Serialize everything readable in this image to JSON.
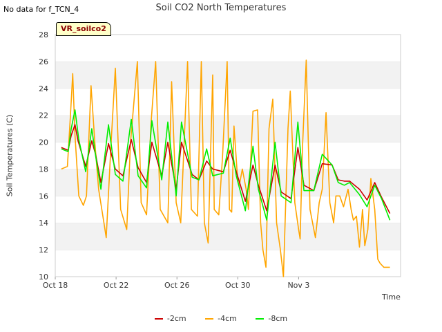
{
  "no_data_note": "No data for f_TCN_4",
  "badge_label": "VR_soilco2",
  "chart_data": {
    "type": "line",
    "title": "Soil CO2 North Temperatures",
    "xlabel": "Time",
    "ylabel": "Soil Temperatures (C)",
    "ylim": [
      10,
      28
    ],
    "yticks": [
      10,
      12,
      14,
      16,
      18,
      20,
      22,
      24,
      26,
      28
    ],
    "xlim": [
      0,
      22.7
    ],
    "xticks": [
      {
        "value": 0,
        "label": "Oct 18"
      },
      {
        "value": 4,
        "label": "Oct 22"
      },
      {
        "value": 8,
        "label": "Oct 26"
      },
      {
        "value": 12,
        "label": "Oct 30"
      },
      {
        "value": 16,
        "label": "Nov 3"
      }
    ],
    "x_unit": "days since Oct 18",
    "grid": "horizontal alternating bands",
    "legend_position": "bottom",
    "series": [
      {
        "name": "-2cm",
        "color": "#cc0000",
        "x": [
          0.4,
          0.85,
          1.05,
          1.3,
          1.5,
          2.0,
          2.4,
          2.65,
          3.0,
          3.5,
          3.95,
          4.45,
          5.0,
          5.45,
          6.0,
          6.35,
          7.0,
          7.4,
          7.95,
          8.3,
          9.0,
          9.45,
          9.95,
          10.35,
          11.05,
          11.5,
          11.9,
          12.5,
          13.0,
          13.35,
          13.9,
          14.45,
          14.85,
          15.5,
          15.95,
          16.35,
          17.0,
          17.55,
          18.2,
          18.6,
          19.0,
          19.35,
          20.0,
          20.5,
          21.0,
          21.45,
          22.0
        ],
        "values": [
          19.6,
          19.4,
          20.5,
          21.3,
          20.1,
          18.2,
          20.1,
          19.1,
          17.0,
          19.9,
          18.0,
          17.5,
          20.2,
          18.1,
          17.0,
          20.0,
          17.5,
          20.0,
          16.5,
          20.0,
          17.6,
          17.2,
          18.6,
          18.0,
          17.8,
          19.4,
          17.8,
          15.6,
          18.3,
          16.8,
          14.9,
          18.3,
          16.3,
          15.8,
          19.6,
          16.8,
          16.4,
          18.4,
          18.3,
          17.2,
          17.1,
          17.1,
          16.5,
          15.7,
          17.0,
          15.9,
          14.7
        ]
      },
      {
        "name": "-4cm",
        "color": "#ffa500",
        "x": [
          0.4,
          0.8,
          1.0,
          1.15,
          1.3,
          1.55,
          1.85,
          2.05,
          2.35,
          2.6,
          2.85,
          3.2,
          3.35,
          3.65,
          3.95,
          4.3,
          4.7,
          4.95,
          5.4,
          5.65,
          6.0,
          6.3,
          6.6,
          6.9,
          7.4,
          7.65,
          7.95,
          8.25,
          8.7,
          8.95,
          9.35,
          9.6,
          9.8,
          10.05,
          10.35,
          10.45,
          10.75,
          11.0,
          11.3,
          11.45,
          11.6,
          11.75,
          12.0,
          12.1,
          12.3,
          12.55,
          12.7,
          13.0,
          13.3,
          13.5,
          13.65,
          13.85,
          14.05,
          14.3,
          14.55,
          14.8,
          15.0,
          15.3,
          15.45,
          15.75,
          16.0,
          16.1,
          16.25,
          16.5,
          16.75,
          17.1,
          17.35,
          17.55,
          17.8,
          18.05,
          18.3,
          18.45,
          18.7,
          18.95,
          19.25,
          19.45,
          19.6,
          19.8,
          20.0,
          20.2,
          20.35,
          20.55,
          20.75,
          21.0,
          21.2,
          21.35,
          21.6,
          22.0
        ],
        "values": [
          18.0,
          18.2,
          22.0,
          25.1,
          20.5,
          16.0,
          15.3,
          16.0,
          24.2,
          20.0,
          16.5,
          14.0,
          12.9,
          19.5,
          25.5,
          15.0,
          13.5,
          20.0,
          26.0,
          15.5,
          14.6,
          21.5,
          26.0,
          15.0,
          14.0,
          24.5,
          15.5,
          14.0,
          26.0,
          15.0,
          14.5,
          26.0,
          14.0,
          12.5,
          25.0,
          15.0,
          14.6,
          19.0,
          26.0,
          15.0,
          14.8,
          21.2,
          17.1,
          16.8,
          18.0,
          16.5,
          15.0,
          22.3,
          22.4,
          14.0,
          12.0,
          10.7,
          21.0,
          23.2,
          14.0,
          12.0,
          10.0,
          21.0,
          23.8,
          15.5,
          13.5,
          12.8,
          19.5,
          26.1,
          15.0,
          12.9,
          15.5,
          16.5,
          22.2,
          15.5,
          14.0,
          16.0,
          16.0,
          15.2,
          16.5,
          15.0,
          14.2,
          14.5,
          12.2,
          15.0,
          12.3,
          13.5,
          17.3,
          15.0,
          11.3,
          11.0,
          10.7,
          10.7
        ]
      },
      {
        "name": "-8cm",
        "color": "#00ee00",
        "x": [
          0.4,
          0.85,
          1.05,
          1.3,
          1.55,
          2.0,
          2.4,
          2.65,
          3.0,
          3.5,
          3.95,
          4.45,
          5.0,
          5.45,
          6.0,
          6.35,
          7.0,
          7.4,
          7.95,
          8.3,
          9.0,
          9.45,
          9.95,
          10.35,
          11.05,
          11.5,
          11.9,
          12.5,
          13.0,
          13.35,
          13.9,
          14.45,
          14.85,
          15.5,
          15.95,
          16.35,
          17.0,
          17.55,
          18.2,
          18.6,
          19.0,
          19.35,
          20.0,
          20.5,
          21.0,
          21.45,
          22.0
        ],
        "values": [
          19.5,
          19.3,
          21.0,
          22.4,
          20.2,
          17.8,
          21.0,
          19.0,
          16.5,
          21.3,
          17.6,
          17.1,
          21.7,
          17.5,
          16.6,
          21.6,
          17.2,
          21.5,
          16.0,
          21.5,
          17.4,
          17.2,
          19.5,
          17.5,
          17.7,
          20.3,
          17.5,
          14.9,
          19.7,
          16.5,
          14.2,
          20.0,
          16.0,
          15.5,
          21.5,
          16.4,
          16.4,
          19.1,
          18.3,
          17.0,
          16.8,
          17.0,
          16.1,
          15.2,
          16.8,
          15.8,
          14.2
        ]
      }
    ]
  }
}
